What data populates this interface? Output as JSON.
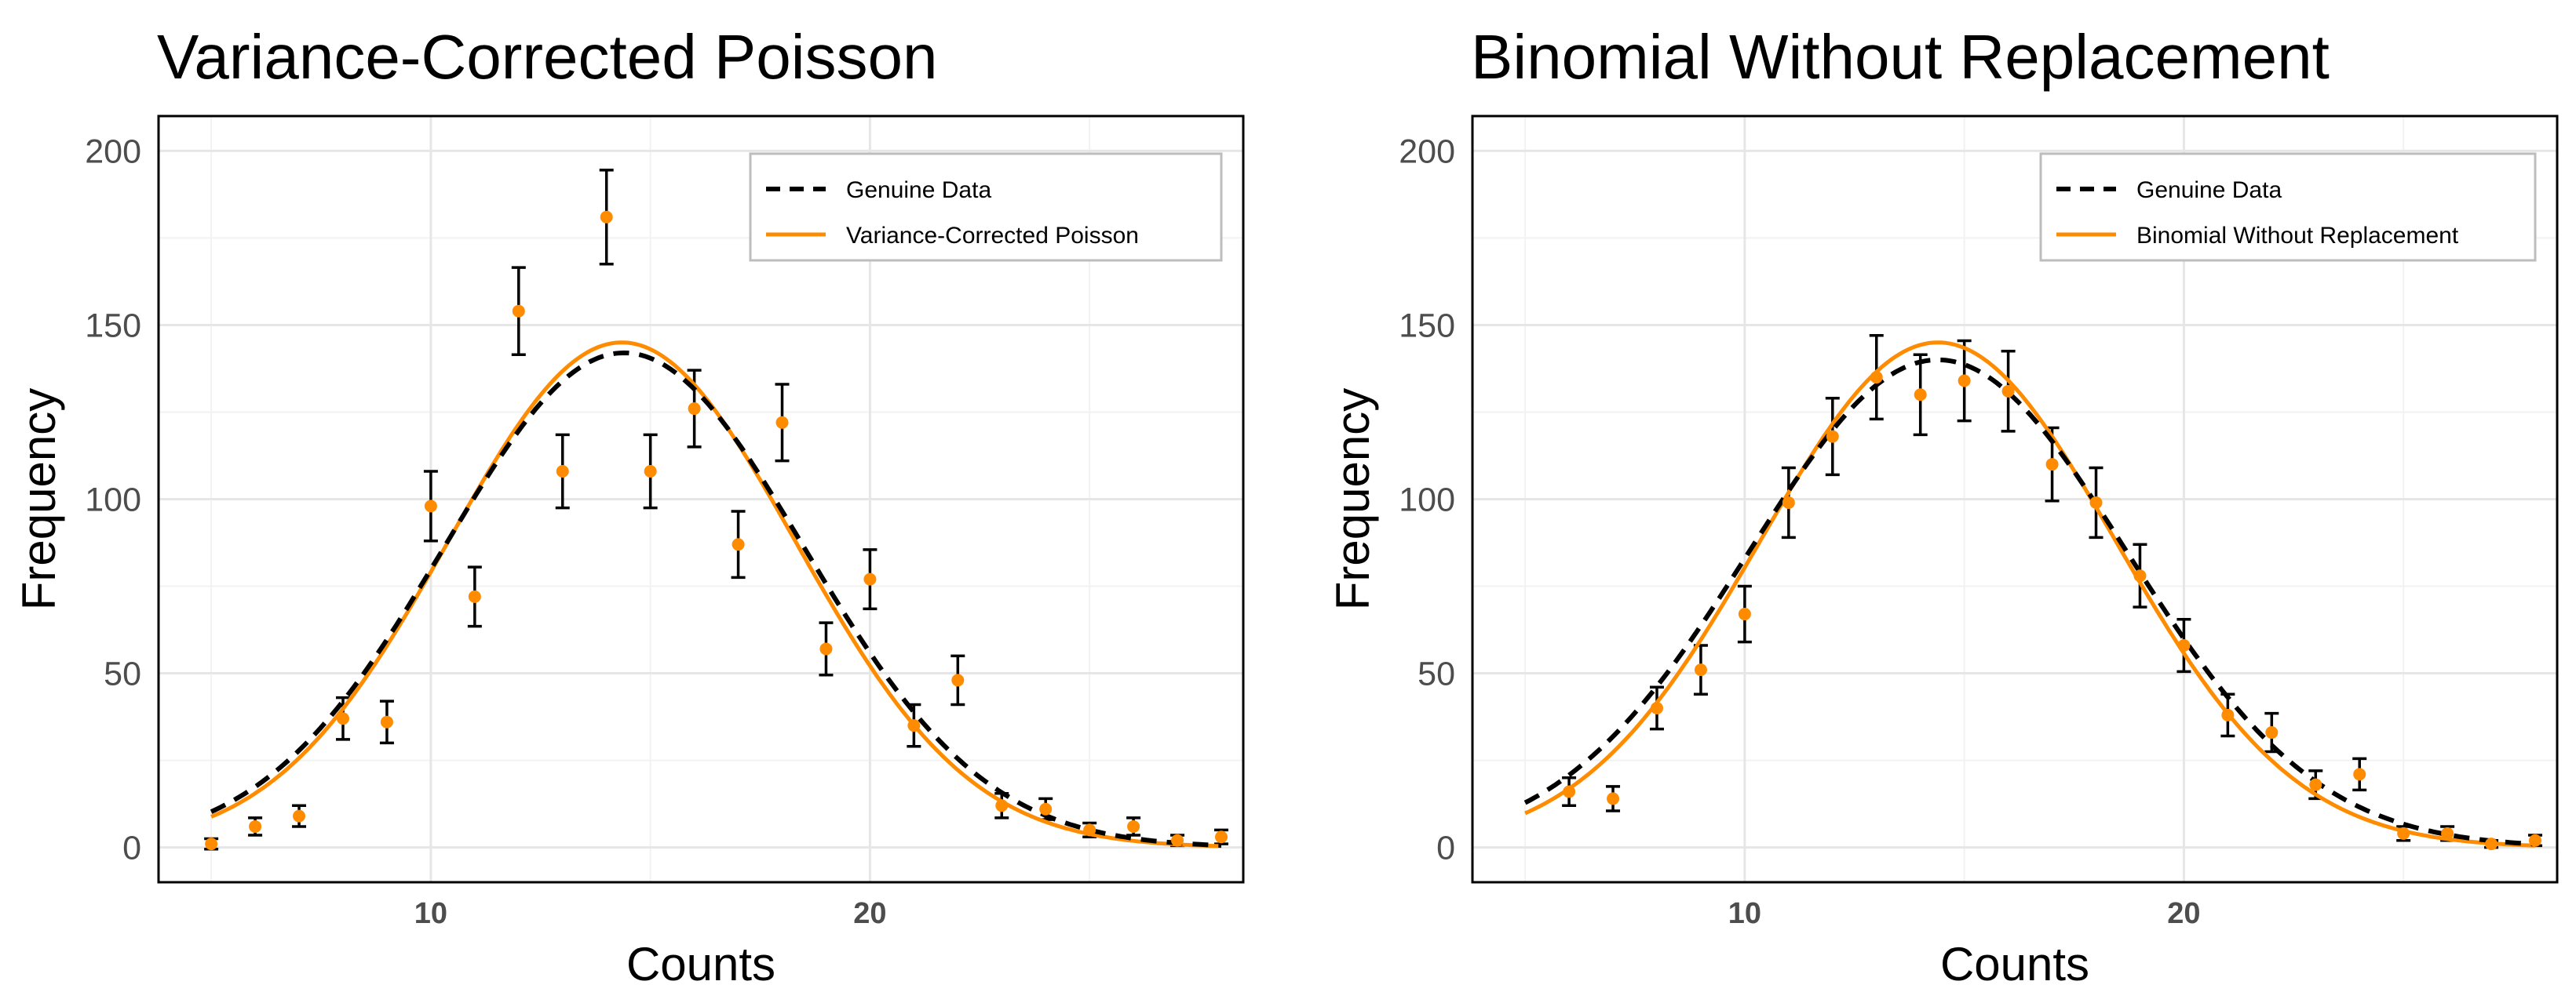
{
  "chart_data": [
    {
      "type": "scatter",
      "title": "Variance-Corrected Poisson",
      "xlabel": "Counts",
      "ylabel": "Frequency",
      "xlim": [
        3.8,
        28.5
      ],
      "ylim": [
        -10,
        210
      ],
      "xticks": [
        10,
        20
      ],
      "xtick_labels": [
        "10",
        "20"
      ],
      "yticks": [
        0,
        50,
        100,
        150,
        200
      ],
      "ytick_labels": [
        "0",
        "50",
        "100",
        "150",
        "200"
      ],
      "grid": true,
      "legend": {
        "position": "top-right",
        "entries": [
          {
            "label": "Genuine Data",
            "style": "dashed",
            "color": "#000000"
          },
          {
            "label": "Variance-Corrected Poisson",
            "style": "solid",
            "color": "#ff8c00"
          }
        ]
      },
      "points": {
        "name": "observed",
        "color": "#ff8c00",
        "x": [
          5,
          6,
          7,
          8,
          9,
          10,
          11,
          12,
          13,
          14,
          15,
          16,
          17,
          18,
          19,
          20,
          21,
          22,
          23,
          24,
          25,
          26,
          27,
          28
        ],
        "y": [
          1,
          6,
          9,
          37,
          36,
          98,
          72,
          154,
          108,
          181,
          108,
          126,
          87,
          122,
          57,
          77,
          35,
          48,
          12,
          11,
          5,
          6,
          2,
          3
        ],
        "err": [
          1.5,
          2.5,
          3,
          6,
          6,
          10,
          8.5,
          12.5,
          10.5,
          13.5,
          10.5,
          11,
          9.5,
          11,
          7.5,
          8.5,
          6,
          7,
          3.5,
          3,
          2,
          2.5,
          1.5,
          2
        ]
      },
      "series": [
        {
          "name": "Genuine Data",
          "style": "dashed",
          "color": "#000000",
          "mean": 14.4,
          "sd": 4.1,
          "peak": 142
        },
        {
          "name": "Variance-Corrected Poisson",
          "style": "solid",
          "color": "#ff8c00",
          "mean": 14.35,
          "sd": 3.95,
          "peak": 145
        }
      ]
    },
    {
      "type": "scatter",
      "title": "Binomial Without Replacement",
      "xlabel": "Counts",
      "ylabel": "Frequency",
      "xlim": [
        3.8,
        28.5
      ],
      "ylim": [
        -10,
        210
      ],
      "xticks": [
        10,
        20
      ],
      "xtick_labels": [
        "10",
        "20"
      ],
      "yticks": [
        0,
        50,
        100,
        150,
        200
      ],
      "ytick_labels": [
        "0",
        "50",
        "100",
        "150",
        "200"
      ],
      "grid": true,
      "legend": {
        "position": "top-right",
        "entries": [
          {
            "label": "Genuine Data",
            "style": "dashed",
            "color": "#000000"
          },
          {
            "label": "Binomial Without Replacement",
            "style": "solid",
            "color": "#ff8c00"
          }
        ]
      },
      "points": {
        "name": "observed",
        "color": "#ff8c00",
        "x": [
          6,
          7,
          8,
          9,
          10,
          11,
          12,
          13,
          14,
          15,
          16,
          17,
          18,
          19,
          20,
          21,
          22,
          23,
          24,
          25,
          26,
          27,
          28
        ],
        "y": [
          16,
          14,
          40,
          51,
          67,
          99,
          118,
          135,
          130,
          134,
          131,
          110,
          99,
          78,
          58,
          38,
          33,
          18,
          21,
          4,
          4,
          1,
          2
        ],
        "err": [
          4,
          3.5,
          6,
          7,
          8,
          10,
          11,
          12,
          11.5,
          11.5,
          11.5,
          10.5,
          10,
          9,
          7.5,
          6,
          5.5,
          4,
          4.5,
          2,
          2,
          1,
          1.5
        ]
      },
      "series": [
        {
          "name": "Genuine Data",
          "style": "dashed",
          "color": "#000000",
          "mean": 14.4,
          "sd": 4.3,
          "peak": 140
        },
        {
          "name": "Binomial Without Replacement",
          "style": "solid",
          "color": "#ff8c00",
          "mean": 14.4,
          "sd": 4.05,
          "peak": 145
        }
      ]
    }
  ]
}
